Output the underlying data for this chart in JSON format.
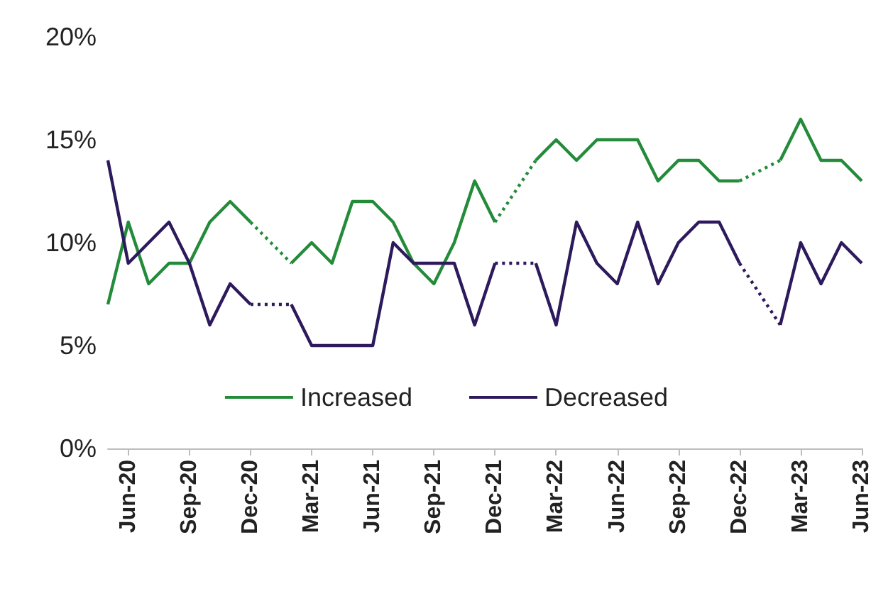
{
  "chart_data": {
    "type": "line",
    "categories": [
      null,
      "Jun-20",
      null,
      null,
      "Sep-20",
      null,
      null,
      "Dec-20",
      null,
      null,
      "Mar-21",
      null,
      null,
      "Jun-21",
      null,
      null,
      "Sep-21",
      null,
      null,
      "Dec-21",
      null,
      null,
      "Mar-22",
      null,
      null,
      "Jun-22",
      null,
      null,
      "Sep-22",
      null,
      null,
      "Dec-22",
      null,
      null,
      "Mar-23",
      null,
      null,
      "Jun-23"
    ],
    "series": [
      {
        "name": "Increased",
        "color": "#238b3a",
        "values": [
          7,
          11,
          8,
          9,
          9,
          11,
          12,
          11,
          null,
          9,
          10,
          9,
          12,
          12,
          11,
          9,
          8,
          10,
          13,
          11,
          null,
          14,
          15,
          14,
          15,
          15,
          15,
          13,
          14,
          14,
          13,
          13,
          null,
          14,
          16,
          14,
          14,
          13
        ]
      },
      {
        "name": "Decreased",
        "color": "#2d1a5c",
        "values": [
          14,
          9,
          10,
          11,
          9,
          6,
          8,
          7,
          null,
          7,
          5,
          5,
          5,
          5,
          10,
          9,
          9,
          9,
          6,
          9,
          null,
          9,
          6,
          11,
          9,
          8,
          11,
          8,
          10,
          11,
          11,
          9,
          null,
          6,
          10,
          8,
          10,
          9
        ]
      }
    ],
    "ylim": [
      0,
      20
    ],
    "yticks": [
      {
        "value": 0,
        "label": "0%"
      },
      {
        "value": 5,
        "label": "5%"
      },
      {
        "value": 10,
        "label": "10%"
      },
      {
        "value": 15,
        "label": "15%"
      },
      {
        "value": 20,
        "label": "20%"
      }
    ],
    "grid": false,
    "legend": "bottom",
    "marker": "none",
    "line_style": "solid"
  }
}
